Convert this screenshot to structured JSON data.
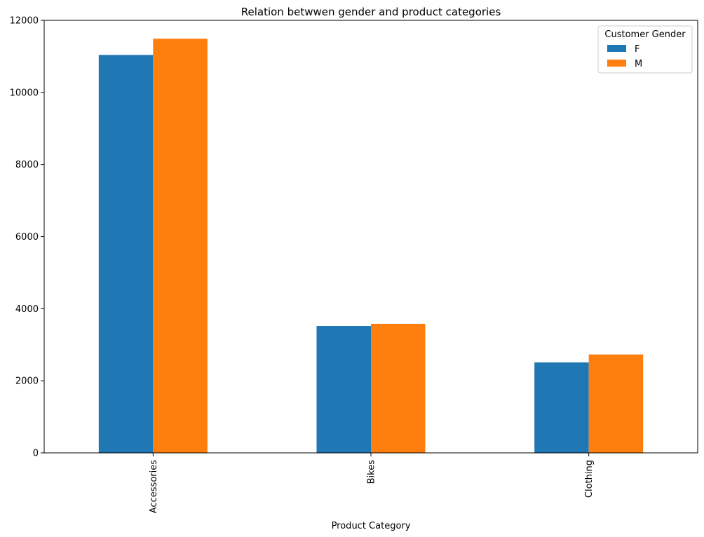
{
  "chart_data": {
    "type": "bar",
    "title": "Relation betwwen gender and product categories",
    "xlabel": "Product Category",
    "ylabel": "",
    "categories": [
      "Accessories",
      "Bikes",
      "Clothing"
    ],
    "series": [
      {
        "name": "F",
        "values": [
          11040,
          3520,
          2510
        ]
      },
      {
        "name": "M",
        "values": [
          11490,
          3580,
          2730
        ]
      }
    ],
    "ylim": [
      0,
      12000
    ],
    "yticks": [
      0,
      2000,
      4000,
      6000,
      8000,
      10000,
      12000
    ],
    "grid": false,
    "legend": {
      "title": "Customer Gender",
      "placement": "top-right"
    },
    "colors": {
      "F": "#1f77b4",
      "M": "#ff7f0e"
    }
  }
}
